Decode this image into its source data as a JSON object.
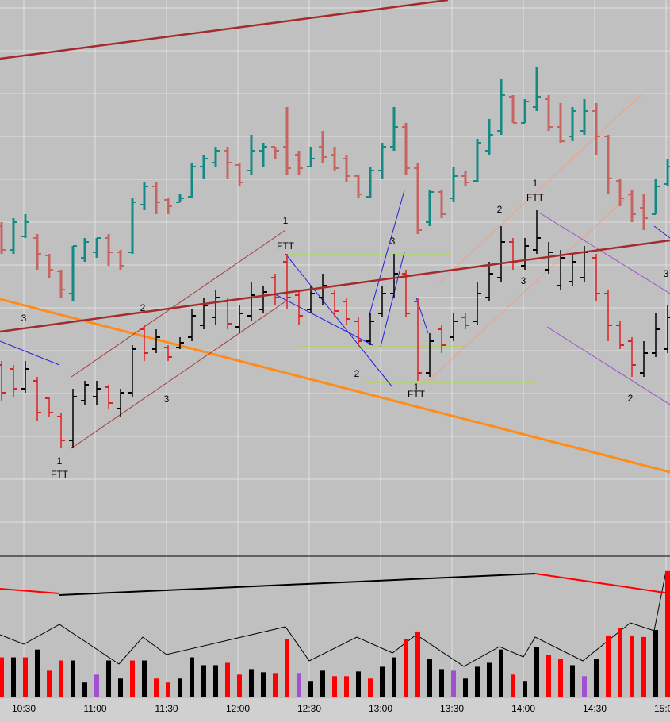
{
  "chart_data": {
    "type": "ohlc",
    "ylim": [
      700,
      0
    ],
    "grid": true,
    "x_labels": [
      "10:30",
      "11:00",
      "11:30",
      "12:00",
      "12:30",
      "13:00",
      "13:30",
      "14:00",
      "14:30",
      "15:00"
    ],
    "bars_a": {
      "up_color": "#138a84",
      "down_color": "#c8645f",
      "ohlc": [
        [
          285,
          280,
          320,
          315
        ],
        [
          315,
          275,
          320,
          280
        ],
        [
          298,
          270,
          300,
          280
        ],
        [
          300,
          295,
          340,
          320
        ],
        [
          322,
          320,
          350,
          340
        ],
        [
          342,
          340,
          375,
          365
        ],
        [
          370,
          310,
          380,
          310
        ],
        [
          325,
          300,
          330,
          305
        ],
        [
          318,
          300,
          325,
          300
        ],
        [
          300,
          295,
          335,
          318
        ],
        [
          318,
          315,
          340,
          335
        ],
        [
          318,
          250,
          320,
          255
        ],
        [
          258,
          230,
          265,
          235
        ],
        [
          235,
          230,
          270,
          255
        ],
        [
          252,
          250,
          270,
          260
        ],
        [
          255,
          245,
          255,
          250
        ],
        [
          248,
          205,
          250,
          210
        ],
        [
          210,
          195,
          225,
          200
        ],
        [
          205,
          185,
          210,
          190
        ],
        [
          190,
          185,
          225,
          205
        ],
        [
          208,
          205,
          235,
          230
        ],
        [
          215,
          170,
          220,
          190
        ],
        [
          190,
          180,
          210,
          185
        ],
        [
          185,
          185,
          200,
          190
        ],
        [
          185,
          135,
          220,
          212
        ],
        [
          195,
          190,
          220,
          212
        ],
        [
          210,
          185,
          210,
          200
        ],
        [
          185,
          165,
          205,
          198
        ],
        [
          195,
          185,
          215,
          212
        ],
        [
          200,
          195,
          230,
          222
        ],
        [
          222,
          220,
          250,
          245
        ],
        [
          248,
          210,
          250,
          215
        ],
        [
          215,
          180,
          225,
          185
        ],
        [
          185,
          135,
          190,
          160
        ],
        [
          160,
          155,
          220,
          212
        ],
        [
          212,
          205,
          295,
          290
        ],
        [
          280,
          240,
          285,
          242
        ],
        [
          242,
          240,
          275,
          270
        ],
        [
          250,
          210,
          255,
          222
        ],
        [
          222,
          215,
          235,
          230
        ],
        [
          228,
          175,
          230,
          180
        ],
        [
          190,
          150,
          195,
          170
        ],
        [
          165,
          100,
          170,
          120
        ],
        [
          122,
          120,
          155,
          155
        ],
        [
          155,
          125,
          155,
          128
        ],
        [
          135,
          85,
          140,
          122
        ],
        [
          125,
          120,
          165,
          160
        ],
        [
          160,
          130,
          180,
          178
        ],
        [
          172,
          135,
          178,
          140
        ],
        [
          165,
          125,
          170,
          140
        ],
        [
          140,
          130,
          195,
          172
        ],
        [
          172,
          170,
          245,
          225
        ],
        [
          228,
          225,
          260,
          250
        ],
        [
          245,
          240,
          280,
          270
        ],
        [
          262,
          245,
          290,
          275
        ],
        [
          270,
          225,
          270,
          235
        ],
        [
          232,
          200,
          235,
          210
        ]
      ]
    },
    "bars_b": {
      "up_color": "#000000",
      "down_color": "#e02020",
      "ohlc": [
        [
          460,
          455,
          505,
          495
        ],
        [
          465,
          460,
          500,
          490
        ],
        [
          490,
          455,
          495,
          465
        ],
        [
          480,
          475,
          530,
          520
        ],
        [
          502,
          500,
          525,
          520
        ],
        [
          525,
          520,
          565,
          555
        ],
        [
          555,
          490,
          565,
          500
        ],
        [
          505,
          480,
          510,
          485
        ],
        [
          500,
          480,
          510,
          490
        ],
        [
          488,
          485,
          515,
          508
        ],
        [
          515,
          490,
          525,
          495
        ],
        [
          495,
          435,
          500,
          440
        ],
        [
          415,
          410,
          455,
          445
        ],
        [
          440,
          415,
          445,
          425
        ],
        [
          438,
          435,
          455,
          450
        ],
        [
          438,
          425,
          440,
          432
        ],
        [
          425,
          390,
          430,
          398
        ],
        [
          410,
          375,
          415,
          385
        ],
        [
          400,
          365,
          410,
          375
        ],
        [
          380,
          375,
          415,
          408
        ],
        [
          412,
          385,
          420,
          395
        ],
        [
          398,
          355,
          405,
          372
        ],
        [
          390,
          360,
          395,
          368
        ],
        [
          350,
          345,
          385,
          375
        ],
        [
          330,
          320,
          390,
          375
        ],
        [
          372,
          365,
          410,
          398
        ],
        [
          390,
          360,
          395,
          370
        ],
        [
          375,
          345,
          385,
          360
        ],
        [
          370,
          365,
          400,
          392
        ],
        [
          380,
          375,
          410,
          402
        ],
        [
          405,
          400,
          435,
          430
        ],
        [
          430,
          395,
          435,
          405
        ],
        [
          395,
          360,
          400,
          370
        ],
        [
          370,
          320,
          375,
          345
        ],
        [
          345,
          340,
          400,
          395
        ],
        [
          380,
          375,
          480,
          470
        ],
        [
          470,
          420,
          475,
          430
        ],
        [
          415,
          410,
          445,
          435
        ],
        [
          425,
          395,
          430,
          405
        ],
        [
          400,
          395,
          415,
          410
        ],
        [
          405,
          355,
          410,
          370
        ],
        [
          375,
          330,
          380,
          345
        ],
        [
          350,
          285,
          355,
          305
        ],
        [
          305,
          300,
          340,
          330
        ],
        [
          335,
          300,
          340,
          310
        ],
        [
          315,
          265,
          320,
          300
        ],
        [
          340,
          305,
          345,
          318
        ],
        [
          360,
          315,
          365,
          325
        ],
        [
          355,
          320,
          360,
          330
        ],
        [
          350,
          310,
          355,
          318
        ],
        [
          325,
          320,
          380,
          370
        ],
        [
          370,
          365,
          430,
          410
        ],
        [
          410,
          405,
          440,
          435
        ],
        [
          430,
          425,
          475,
          460
        ],
        [
          470,
          430,
          475,
          445
        ],
        [
          445,
          395,
          450,
          415
        ],
        [
          440,
          385,
          445,
          400
        ]
      ]
    },
    "volume": {
      "ylim": [
        0,
        178
      ],
      "values": [
        50,
        50,
        50,
        60,
        33,
        46,
        46,
        18,
        28,
        46,
        23,
        46,
        46,
        23,
        18,
        23,
        50,
        40,
        40,
        43,
        28,
        35,
        31,
        30,
        73,
        30,
        20,
        33,
        26,
        26,
        32,
        23,
        38,
        50,
        73,
        83,
        48,
        35,
        33,
        23,
        38,
        43,
        60,
        28,
        20,
        63,
        53,
        48,
        40,
        26,
        48,
        78,
        88,
        78,
        76,
        85,
        160
      ],
      "colors": [
        "#ff0000",
        "#000000",
        "#ff0000",
        "#000000",
        "#ff0000",
        "#ff0000",
        "#000000",
        "#000000",
        "#a050d0",
        "#000000",
        "#000000",
        "#ff0000",
        "#000000",
        "#ff0000",
        "#ff0000",
        "#000000",
        "#000000",
        "#000000",
        "#000000",
        "#ff0000",
        "#ff0000",
        "#000000",
        "#000000",
        "#ff0000",
        "#ff0000",
        "#a050d0",
        "#000000",
        "#000000",
        "#ff0000",
        "#ff0000",
        "#000000",
        "#ff0000",
        "#000000",
        "#000000",
        "#ff0000",
        "#ff0000",
        "#000000",
        "#000000",
        "#a050d0",
        "#000000",
        "#000000",
        "#000000",
        "#000000",
        "#ff0000",
        "#000000",
        "#000000",
        "#ff0000",
        "#ff0000",
        "#000000",
        "#a050d0",
        "#000000",
        "#ff0000",
        "#ff0000",
        "#ff0000",
        "#ff0000",
        "#000000",
        "#ff0000"
      ]
    },
    "annotations": [
      "3",
      "1",
      "FTT",
      "2",
      "3",
      "1",
      "FTT",
      "3",
      "2",
      "1",
      "FTT",
      "2",
      "1",
      "FTT",
      "3",
      "3",
      "2"
    ]
  }
}
